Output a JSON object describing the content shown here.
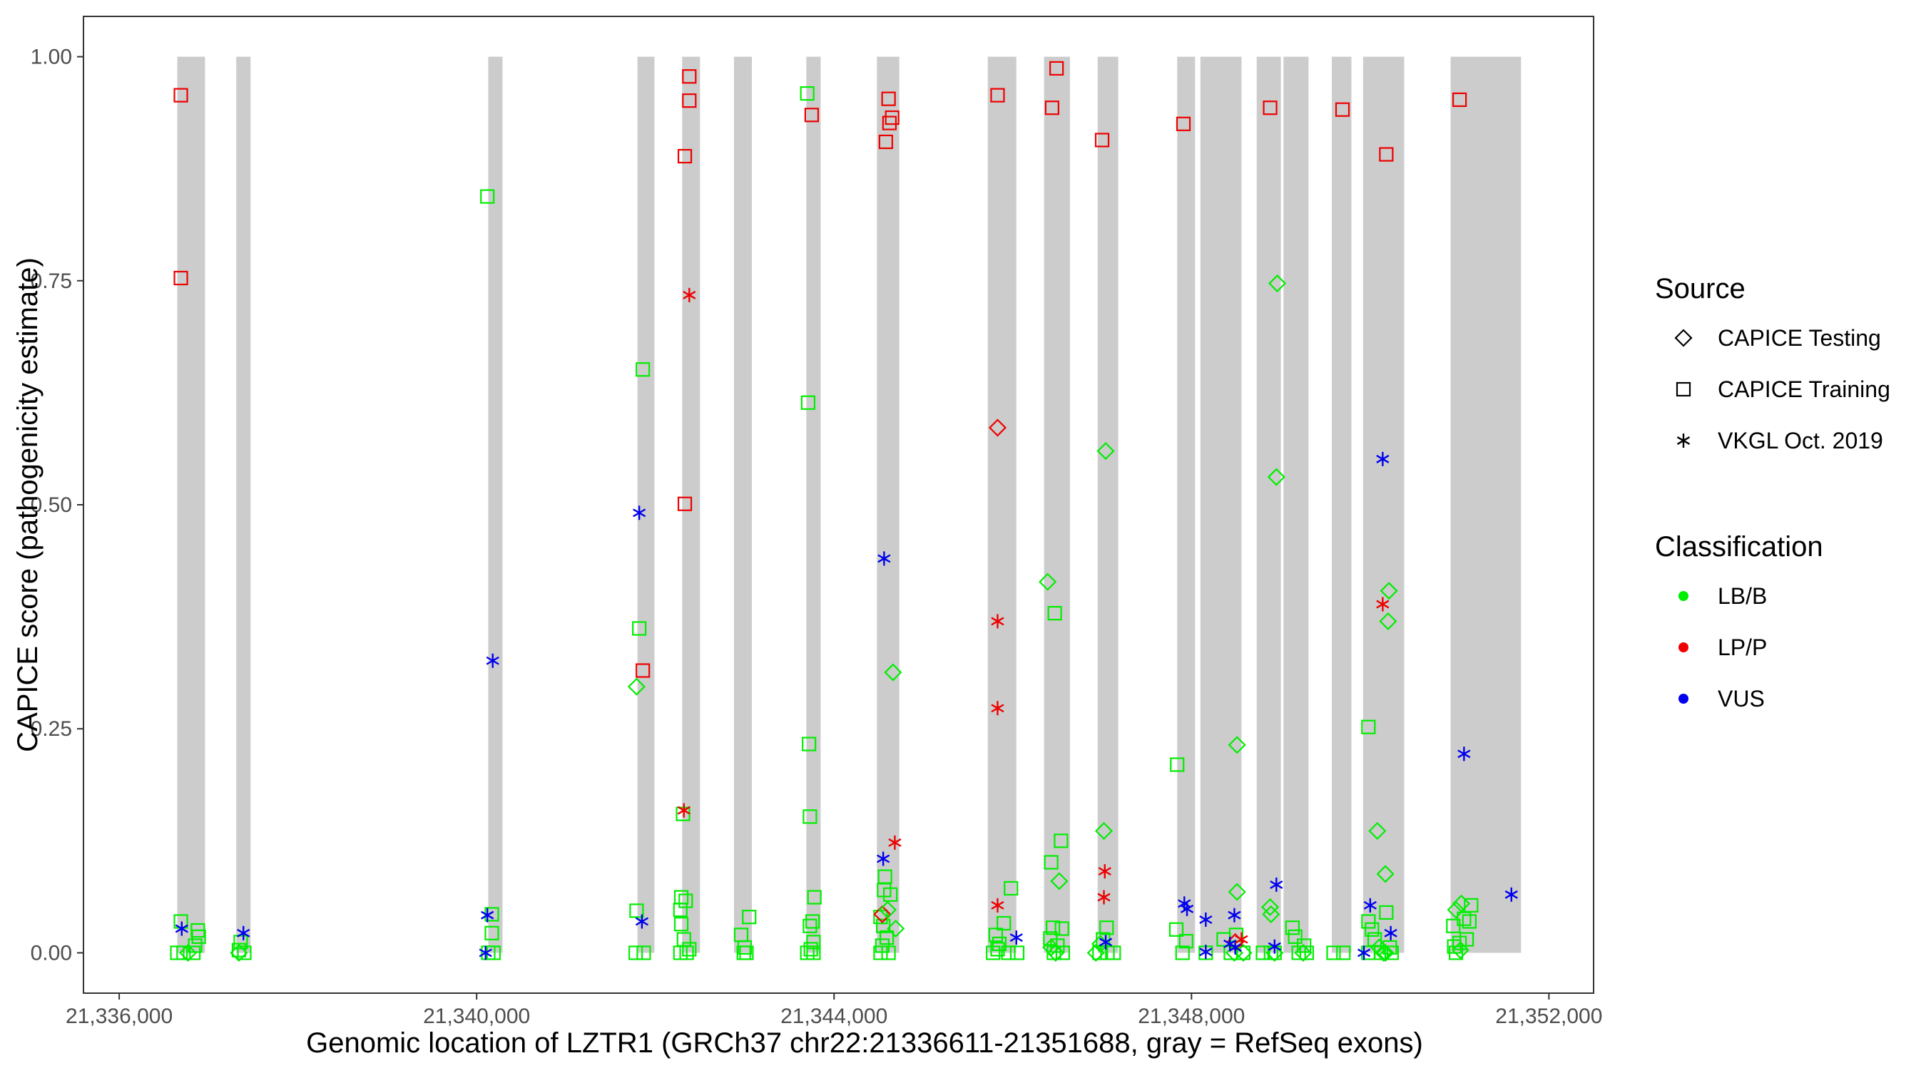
{
  "chart_data": {
    "type": "scatter",
    "xlabel": "Genomic location of LZTR1 (GRCh37 chr22:21336611-21351688, gray = RefSeq exons)",
    "ylabel": "CAPICE score (pathogenicity estimate)",
    "xlim": [
      21335600,
      21352500
    ],
    "ylim": [
      -0.045,
      1.045
    ],
    "x_ticks": [
      21336000,
      21340000,
      21344000,
      21348000,
      21352000
    ],
    "x_tick_labels": [
      "21,336,000",
      "21,340,000",
      "21,344,000",
      "21,348,000",
      "21,352,000"
    ],
    "y_ticks": [
      0,
      0.25,
      0.5,
      0.75,
      1.0
    ],
    "y_tick_labels": [
      "0.00",
      "0.25",
      "0.50",
      "0.75",
      "1.00"
    ],
    "exons": [
      {
        "start": 21336650,
        "end": 21336960
      },
      {
        "start": 21337310,
        "end": 21337470
      },
      {
        "start": 21340130,
        "end": 21340290
      },
      {
        "start": 21341800,
        "end": 21341990
      },
      {
        "start": 21342300,
        "end": 21342500
      },
      {
        "start": 21342880,
        "end": 21343080
      },
      {
        "start": 21343690,
        "end": 21343850
      },
      {
        "start": 21344480,
        "end": 21344730
      },
      {
        "start": 21345720,
        "end": 21346040
      },
      {
        "start": 21346350,
        "end": 21346640
      },
      {
        "start": 21346950,
        "end": 21347180
      },
      {
        "start": 21347840,
        "end": 21348040
      },
      {
        "start": 21348100,
        "end": 21348560
      },
      {
        "start": 21348730,
        "end": 21349000
      },
      {
        "start": 21349030,
        "end": 21349310
      },
      {
        "start": 21349570,
        "end": 21349790
      },
      {
        "start": 21349920,
        "end": 21350380
      },
      {
        "start": 21350900,
        "end": 21351688
      }
    ],
    "legend": {
      "source_title": "Source",
      "source_items": [
        {
          "label": "CAPICE Testing",
          "shape": "diamond"
        },
        {
          "label": "CAPICE Training",
          "shape": "square"
        },
        {
          "label": "VKGL Oct. 2019",
          "shape": "asterisk"
        }
      ],
      "class_title": "Classification",
      "class_items": [
        {
          "label": "LB/B",
          "color": "#00ee00"
        },
        {
          "label": "LP/P",
          "color": "#ee0000"
        },
        {
          "label": "VUS",
          "color": "#0000ee"
        }
      ]
    },
    "colors": {
      "LB/B": "#00ee00",
      "LP/P": "#ee0000",
      "VUS": "#0000ee",
      "exon": "#cccccc"
    },
    "series": [
      {
        "name": "CAPICE Training",
        "classification": "LP/P",
        "shape": "square",
        "points": [
          [
            21336690,
            0.957
          ],
          [
            21336690,
            0.753
          ],
          [
            21341860,
            0.315
          ],
          [
            21342330,
            0.889
          ],
          [
            21342330,
            0.501
          ],
          [
            21342380,
            0.978
          ],
          [
            21342380,
            0.951
          ],
          [
            21343750,
            0.935
          ],
          [
            21344580,
            0.905
          ],
          [
            21344610,
            0.953
          ],
          [
            21344620,
            0.926
          ],
          [
            21344650,
            0.932
          ],
          [
            21345830,
            0.957
          ],
          [
            21346440,
            0.943
          ],
          [
            21346490,
            0.987
          ],
          [
            21347000,
            0.907
          ],
          [
            21347910,
            0.925
          ],
          [
            21348880,
            0.943
          ],
          [
            21349690,
            0.941
          ],
          [
            21350180,
            0.891
          ],
          [
            21351000,
            0.952
          ]
        ]
      },
      {
        "name": "CAPICE Training",
        "classification": "LB/B",
        "shape": "square",
        "points": [
          [
            21340120,
            0.844
          ],
          [
            21341860,
            0.651
          ],
          [
            21341820,
            0.362
          ],
          [
            21341790,
            0.047
          ],
          [
            21341780,
            0.0
          ],
          [
            21341870,
            0.0
          ],
          [
            21342310,
            0.155
          ],
          [
            21342290,
            0.062
          ],
          [
            21342340,
            0.058
          ],
          [
            21342280,
            0.048
          ],
          [
            21342290,
            0.032
          ],
          [
            21342320,
            0.015
          ],
          [
            21342380,
            0.004
          ],
          [
            21342350,
            0.0
          ],
          [
            21342280,
            0.0
          ],
          [
            21343700,
            0.959
          ],
          [
            21343710,
            0.614
          ],
          [
            21343720,
            0.233
          ],
          [
            21343730,
            0.152
          ],
          [
            21343780,
            0.062
          ],
          [
            21343760,
            0.035
          ],
          [
            21343730,
            0.03
          ],
          [
            21343770,
            0.012
          ],
          [
            21343740,
            0.004
          ],
          [
            21343770,
            0.0
          ],
          [
            21343700,
            0.0
          ],
          [
            21343050,
            0.04
          ],
          [
            21342960,
            0.02
          ],
          [
            21343000,
            0.006
          ],
          [
            21342990,
            0.0
          ],
          [
            21343020,
            0.0
          ],
          [
            21344570,
            0.085
          ],
          [
            21344560,
            0.07
          ],
          [
            21344630,
            0.065
          ],
          [
            21344520,
            0.04
          ],
          [
            21344550,
            0.03
          ],
          [
            21344590,
            0.017
          ],
          [
            21344540,
            0.008
          ],
          [
            21344610,
            0.0
          ],
          [
            21344520,
            0.0
          ],
          [
            21345810,
            0.02
          ],
          [
            21345850,
            0.01
          ],
          [
            21345830,
            0.004
          ],
          [
            21345900,
            0.033
          ],
          [
            21345980,
            0.072
          ],
          [
            21345780,
            0.0
          ],
          [
            21345950,
            0.0
          ],
          [
            21346050,
            0.0
          ],
          [
            21346430,
            0.101
          ],
          [
            21346470,
            0.379
          ],
          [
            21346540,
            0.125
          ],
          [
            21346450,
            0.028
          ],
          [
            21346420,
            0.016
          ],
          [
            21346550,
            0.027
          ],
          [
            21346500,
            0.008
          ],
          [
            21346460,
            0.0
          ],
          [
            21346560,
            0.0
          ],
          [
            21347050,
            0.028
          ],
          [
            21347010,
            0.015
          ],
          [
            21347060,
            0.0
          ],
          [
            21346970,
            0.0
          ],
          [
            21347130,
            0.0
          ],
          [
            21337360,
            0.012
          ],
          [
            21337400,
            0.0
          ],
          [
            21337340,
            0.003
          ],
          [
            21336690,
            0.035
          ],
          [
            21336720,
            0.0
          ],
          [
            21336650,
            0.0
          ],
          [
            21336880,
            0.025
          ],
          [
            21336890,
            0.018
          ],
          [
            21336850,
            0.008
          ],
          [
            21336830,
            0.0
          ],
          [
            21340170,
            0.043
          ],
          [
            21340170,
            0.022
          ],
          [
            21340190,
            0.0
          ],
          [
            21340130,
            0.0
          ],
          [
            21347840,
            0.21
          ],
          [
            21347830,
            0.026
          ],
          [
            21347900,
            0.0
          ],
          [
            21347940,
            0.013
          ],
          [
            21348160,
            0.0
          ],
          [
            21348360,
            0.015
          ],
          [
            21348440,
            0.0
          ],
          [
            21348580,
            0.0
          ],
          [
            21348500,
            0.02
          ],
          [
            21348800,
            0.0
          ],
          [
            21348890,
            0.0
          ],
          [
            21348930,
            0.0
          ],
          [
            21349130,
            0.028
          ],
          [
            21349160,
            0.018
          ],
          [
            21349200,
            0.0
          ],
          [
            21349290,
            0.0
          ],
          [
            21349260,
            0.008
          ],
          [
            21349590,
            0.0
          ],
          [
            21349700,
            0.0
          ],
          [
            21349980,
            0.252
          ],
          [
            21349980,
            0.035
          ],
          [
            21350020,
            0.026
          ],
          [
            21350050,
            0.015
          ],
          [
            21350120,
            0.0
          ],
          [
            21350180,
            0.045
          ],
          [
            21350220,
            0.006
          ],
          [
            21350240,
            0.0
          ],
          [
            21349980,
            0.0
          ],
          [
            21350930,
            0.03
          ],
          [
            21351050,
            0.038
          ],
          [
            21351130,
            0.053
          ],
          [
            21351110,
            0.035
          ],
          [
            21351080,
            0.015
          ],
          [
            21350960,
            0.0
          ],
          [
            21351000,
            0.011
          ],
          [
            21350940,
            0.007
          ]
        ]
      },
      {
        "name": "CAPICE Testing",
        "classification": "LP/P",
        "shape": "diamond",
        "points": [
          [
            21345830,
            0.586
          ],
          [
            21344540,
            0.043
          ],
          [
            21348490,
            0.012
          ]
        ]
      },
      {
        "name": "CAPICE Testing",
        "classification": "LB/B",
        "shape": "diamond",
        "points": [
          [
            21341790,
            0.297
          ],
          [
            21344660,
            0.313
          ],
          [
            21344690,
            0.027
          ],
          [
            21344600,
            0.048
          ],
          [
            21346390,
            0.414
          ],
          [
            21346520,
            0.08
          ],
          [
            21346430,
            0.006
          ],
          [
            21346480,
            0.0
          ],
          [
            21347040,
            0.56
          ],
          [
            21347020,
            0.136
          ],
          [
            21346980,
            0.01
          ],
          [
            21346930,
            0.0
          ],
          [
            21348510,
            0.232
          ],
          [
            21348510,
            0.068
          ],
          [
            21348480,
            0.0
          ],
          [
            21348580,
            0.0
          ],
          [
            21348960,
            0.747
          ],
          [
            21348950,
            0.531
          ],
          [
            21348880,
            0.051
          ],
          [
            21348890,
            0.043
          ],
          [
            21348930,
            0.0
          ],
          [
            21350210,
            0.404
          ],
          [
            21350200,
            0.37
          ],
          [
            21350080,
            0.136
          ],
          [
            21350170,
            0.088
          ],
          [
            21350100,
            0.006
          ],
          [
            21350170,
            0.0
          ],
          [
            21351020,
            0.055
          ],
          [
            21350960,
            0.048
          ],
          [
            21351010,
            0.003
          ],
          [
            21350150,
            0.0
          ],
          [
            21349250,
            0.0
          ],
          [
            21337340,
            0.0
          ],
          [
            21336770,
            0.0
          ]
        ]
      },
      {
        "name": "VKGL Oct. 2019",
        "classification": "VUS",
        "shape": "asterisk",
        "points": [
          [
            21336700,
            0.027
          ],
          [
            21337390,
            0.022
          ],
          [
            21340100,
            0.0
          ],
          [
            21340120,
            0.042
          ],
          [
            21340180,
            0.326
          ],
          [
            21341820,
            0.491
          ],
          [
            21341850,
            0.035
          ],
          [
            21344560,
            0.44
          ],
          [
            21344550,
            0.105
          ],
          [
            21346040,
            0.017
          ],
          [
            21347040,
            0.012
          ],
          [
            21347920,
            0.055
          ],
          [
            21347950,
            0.049
          ],
          [
            21348160,
            0.037
          ],
          [
            21348160,
            0.001
          ],
          [
            21348480,
            0.042
          ],
          [
            21348490,
            0.006
          ],
          [
            21348430,
            0.01
          ],
          [
            21348950,
            0.076
          ],
          [
            21348930,
            0.007
          ],
          [
            21349930,
            0.0
          ],
          [
            21350000,
            0.053
          ],
          [
            21350230,
            0.022
          ],
          [
            21350140,
            0.551
          ],
          [
            21351050,
            0.222
          ],
          [
            21351580,
            0.065
          ]
        ]
      },
      {
        "name": "VKGL Oct. 2019",
        "classification": "LP/P",
        "shape": "asterisk",
        "points": [
          [
            21342380,
            0.734
          ],
          [
            21342320,
            0.159
          ],
          [
            21344680,
            0.123
          ],
          [
            21345830,
            0.37
          ],
          [
            21345830,
            0.273
          ],
          [
            21345830,
            0.053
          ],
          [
            21347030,
            0.091
          ],
          [
            21347020,
            0.062
          ],
          [
            21350140,
            0.389
          ],
          [
            21348560,
            0.015
          ]
        ]
      }
    ]
  }
}
